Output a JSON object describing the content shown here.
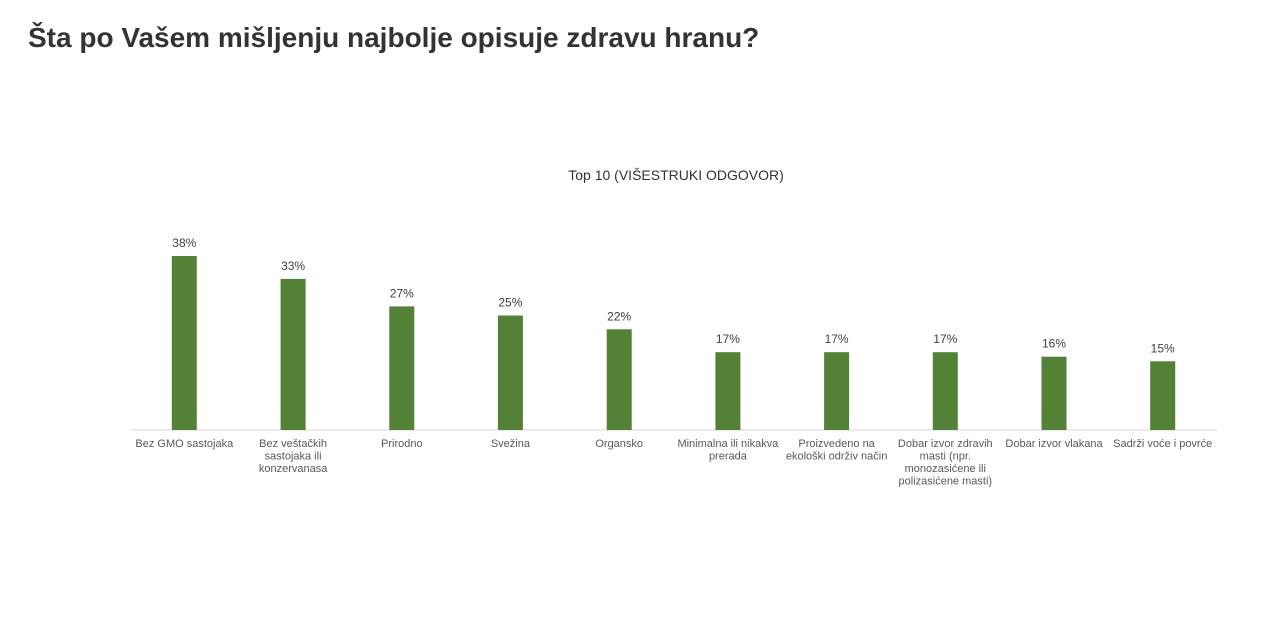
{
  "page": {
    "title": "Šta po Vašem mišljenju najbolje opisuje zdravu hranu?"
  },
  "colors": {
    "bar": "#538135",
    "axis": "#d9d9d9",
    "title_text": "#333333",
    "label_text": "#595959",
    "value_text": "#404040"
  },
  "chart_data": {
    "type": "bar",
    "title": "Top 10 (VIŠESTRUKI ODGOVOR)",
    "xlabel": "",
    "ylabel": "",
    "ylim": [
      0,
      38
    ],
    "grid": false,
    "legend": "none",
    "categories": [
      [
        "Bez GMO sastojaka"
      ],
      [
        "Bez veštačkih",
        "sastojaka ili",
        "konzervanasa"
      ],
      [
        "Prirodno"
      ],
      [
        "Svežina"
      ],
      [
        "Organsko"
      ],
      [
        "Minimalna ili nikakva",
        "prerada"
      ],
      [
        "Proizvedeno na",
        "ekološki održiv način"
      ],
      [
        "Dobar izvor zdravih",
        "masti (npr.",
        "monozasićene ili",
        "polizasićene masti)"
      ],
      [
        "Dobar izvor vlakana"
      ],
      [
        "Sadrži voće i povrće"
      ]
    ],
    "values": [
      38,
      33,
      27,
      25,
      22,
      17,
      17,
      17,
      16,
      15
    ],
    "value_labels": [
      "38%",
      "33%",
      "27%",
      "25%",
      "22%",
      "17%",
      "17%",
      "17%",
      "16%",
      "15%"
    ]
  }
}
